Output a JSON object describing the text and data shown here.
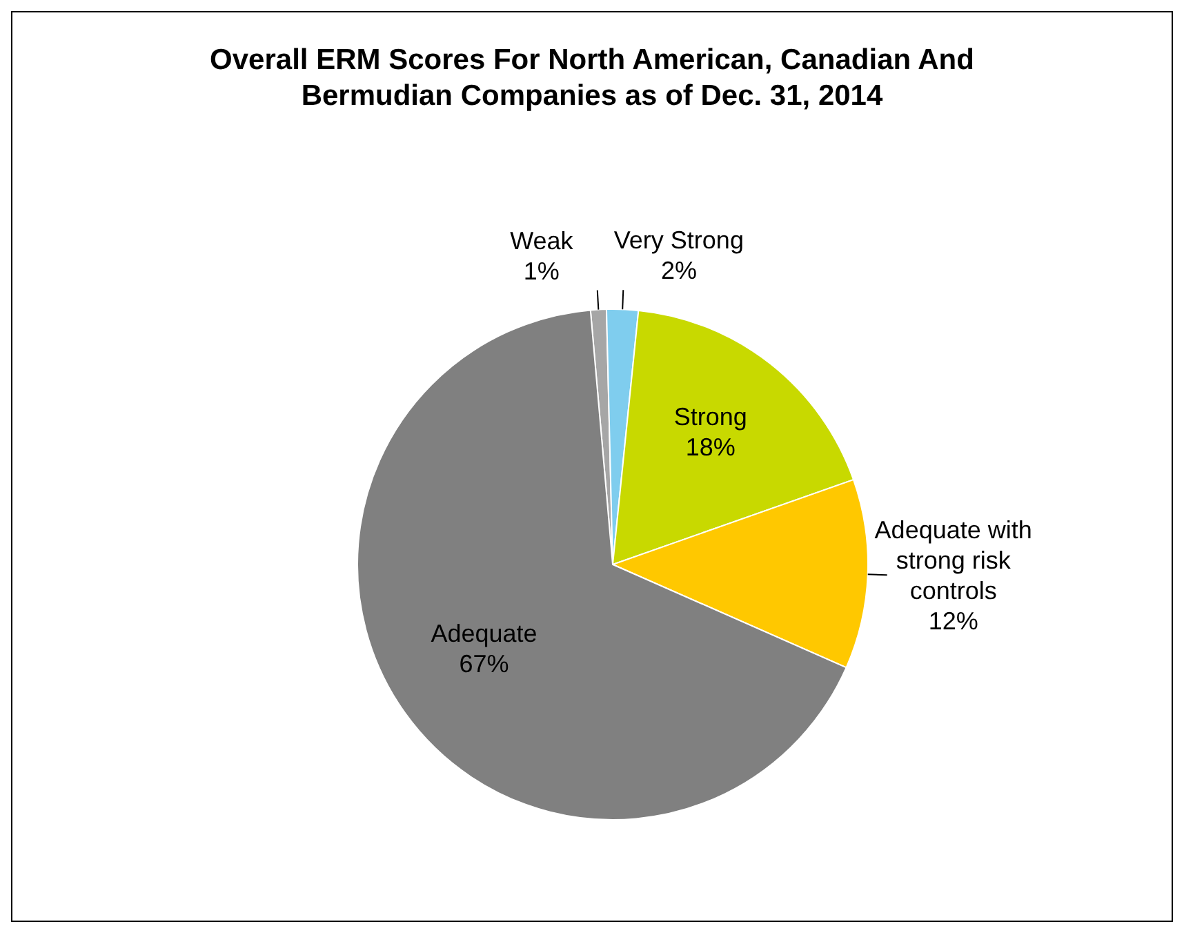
{
  "chart_data": {
    "type": "pie",
    "title": "Overall ERM Scores For North American, Canadian And Bermudian Companies as of Dec. 31, 2014",
    "categories": [
      "Weak",
      "Very Strong",
      "Strong",
      "Adequate with strong risk controls",
      "Adequate"
    ],
    "values": [
      1,
      2,
      18,
      12,
      67
    ],
    "value_labels": [
      "1%",
      "2%",
      "18%",
      "12%",
      "67%"
    ],
    "colors": [
      "#a6a6a6",
      "#7fcdee",
      "#c8d900",
      "#ffc800",
      "#808080"
    ],
    "legend": false
  }
}
